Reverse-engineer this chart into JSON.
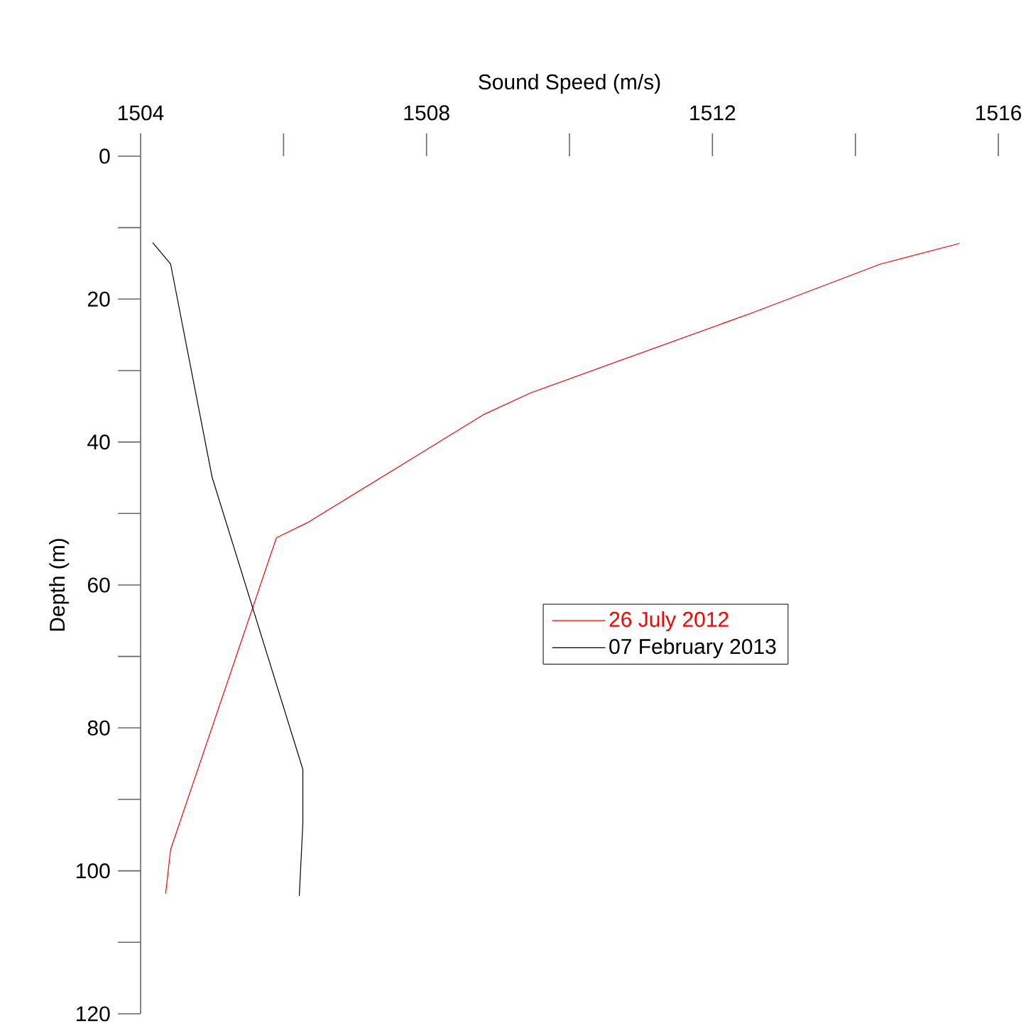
{
  "chart_data": {
    "type": "line",
    "xlabel": "Sound Speed (m/s)",
    "ylabel": "Depth (m)",
    "xlim": [
      1504,
      1516
    ],
    "ylim": [
      120,
      0
    ],
    "xticks": [
      1504,
      {
        "value": 1506,
        "label": null
      },
      1508,
      {
        "value": 1510,
        "label": null
      },
      1512,
      {
        "value": 1514,
        "label": null
      },
      1516
    ],
    "yticks": [
      0,
      {
        "value": 10,
        "label": null
      },
      20,
      {
        "value": 30,
        "label": null
      },
      40,
      {
        "value": 50,
        "label": null
      },
      60,
      {
        "value": 70,
        "label": null
      },
      80,
      {
        "value": 90,
        "label": null
      },
      100,
      {
        "value": 110,
        "label": null
      },
      120
    ],
    "legend": "right",
    "grid": false,
    "marker": "none",
    "series": [
      {
        "name": "26 July 2012",
        "color": "#ff0000",
        "x": [
          1515.46,
          1514.35,
          1512.56,
          1509.46,
          1508.79,
          1507.8,
          1506.33,
          1505.9,
          1504.42,
          1504.35
        ],
        "values": [
          12.2,
          15.1,
          21.9,
          33.1,
          36.2,
          42.3,
          51.3,
          53.4,
          97.0,
          103.2
        ]
      },
      {
        "name": "07 February 2013",
        "color": "#000000",
        "x": [
          1504.17,
          1504.42,
          1505.0,
          1506.27,
          1506.27,
          1506.22
        ],
        "values": [
          12.1,
          15.1,
          44.9,
          85.8,
          93.4,
          103.5
        ]
      }
    ]
  }
}
